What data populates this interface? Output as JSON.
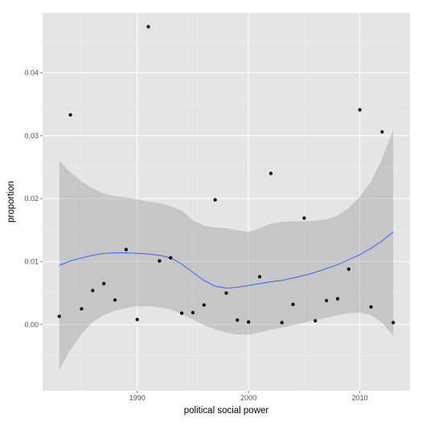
{
  "chart_data": {
    "type": "scatter",
    "title": "",
    "xlabel": "political social power",
    "ylabel": "proportion",
    "xlim": [
      1981.5,
      2014.5
    ],
    "ylim": [
      -0.0105,
      0.0495
    ],
    "x_ticks": [
      1990,
      2000,
      2010
    ],
    "x_tick_labels": [
      "1990",
      "2000",
      "2010"
    ],
    "y_ticks": [
      0.0,
      0.01,
      0.02,
      0.03,
      0.04
    ],
    "y_tick_labels": [
      "0.00",
      "0.01",
      "0.02",
      "0.03",
      "0.04"
    ],
    "grid": true,
    "legend": "none",
    "colors": {
      "panel_background": "#e5e5e5",
      "grid_major": "#ffffff",
      "grid_minor": "#f2f2f2",
      "points": "#000000",
      "smooth_line": "#3366ff",
      "ribbon": "#999999",
      "text": "#4d4d4d"
    },
    "points": [
      {
        "x": 1983,
        "y": 0.0013
      },
      {
        "x": 1984,
        "y": 0.0333
      },
      {
        "x": 1985,
        "y": 0.0025
      },
      {
        "x": 1986,
        "y": 0.0054
      },
      {
        "x": 1987,
        "y": 0.0065
      },
      {
        "x": 1988,
        "y": 0.0039
      },
      {
        "x": 1989,
        "y": 0.0119
      },
      {
        "x": 1990,
        "y": 0.0008
      },
      {
        "x": 1991,
        "y": 0.0473
      },
      {
        "x": 1992,
        "y": 0.0101
      },
      {
        "x": 1993,
        "y": 0.0106
      },
      {
        "x": 1994,
        "y": 0.0018
      },
      {
        "x": 1995,
        "y": 0.0019
      },
      {
        "x": 1996,
        "y": 0.0031
      },
      {
        "x": 1997,
        "y": 0.0198
      },
      {
        "x": 1998,
        "y": 0.005
      },
      {
        "x": 1999,
        "y": 0.0007
      },
      {
        "x": 2000,
        "y": 0.0004
      },
      {
        "x": 2001,
        "y": 0.0076
      },
      {
        "x": 2002,
        "y": 0.024
      },
      {
        "x": 2003,
        "y": 0.0003
      },
      {
        "x": 2004,
        "y": 0.0032
      },
      {
        "x": 2005,
        "y": 0.0169
      },
      {
        "x": 2006,
        "y": 0.0006
      },
      {
        "x": 2007,
        "y": 0.0038
      },
      {
        "x": 2008,
        "y": 0.0041
      },
      {
        "x": 2009,
        "y": 0.0088
      },
      {
        "x": 2010,
        "y": 0.0341
      },
      {
        "x": 2011,
        "y": 0.0028
      },
      {
        "x": 2012,
        "y": 0.0306
      },
      {
        "x": 2013,
        "y": 0.0003
      }
    ],
    "smooth": {
      "x": [
        1983,
        1984,
        1985,
        1986,
        1987,
        1988,
        1989,
        1990,
        1991,
        1992,
        1993,
        1994,
        1995,
        1996,
        1997,
        1998,
        1999,
        2000,
        2001,
        2002,
        2003,
        2004,
        2005,
        2006,
        2007,
        2008,
        2009,
        2010,
        2011,
        2012,
        2013
      ],
      "fit": [
        0.0094,
        0.0101,
        0.0106,
        0.011,
        0.0113,
        0.0114,
        0.0114,
        0.0113,
        0.0112,
        0.011,
        0.0106,
        0.0096,
        0.0083,
        0.007,
        0.0061,
        0.0058,
        0.0059,
        0.0062,
        0.0065,
        0.0068,
        0.007,
        0.0074,
        0.0078,
        0.0083,
        0.0089,
        0.0095,
        0.0103,
        0.0111,
        0.0121,
        0.0133,
        0.0147
      ],
      "lower": [
        -0.0072,
        -0.004,
        -0.0015,
        0.0004,
        0.0015,
        0.0022,
        0.0026,
        0.0029,
        0.0029,
        0.0027,
        0.0024,
        0.0017,
        0.0008,
        -0.0001,
        -0.0008,
        -0.0013,
        -0.0016,
        -0.0016,
        -0.0013,
        -0.0008,
        -0.0005,
        -0.0001,
        0.0003,
        0.0007,
        0.0011,
        0.0015,
        0.0018,
        0.0019,
        0.0015,
        0.0003,
        -0.0018
      ],
      "upper": [
        0.026,
        0.0242,
        0.0227,
        0.0216,
        0.0208,
        0.0204,
        0.0202,
        0.0199,
        0.0195,
        0.0193,
        0.0188,
        0.0181,
        0.0166,
        0.0157,
        0.0154,
        0.0153,
        0.015,
        0.0147,
        0.0153,
        0.016,
        0.0163,
        0.0164,
        0.0164,
        0.0165,
        0.0167,
        0.0173,
        0.0185,
        0.0203,
        0.0227,
        0.0263,
        0.031
      ]
    }
  }
}
